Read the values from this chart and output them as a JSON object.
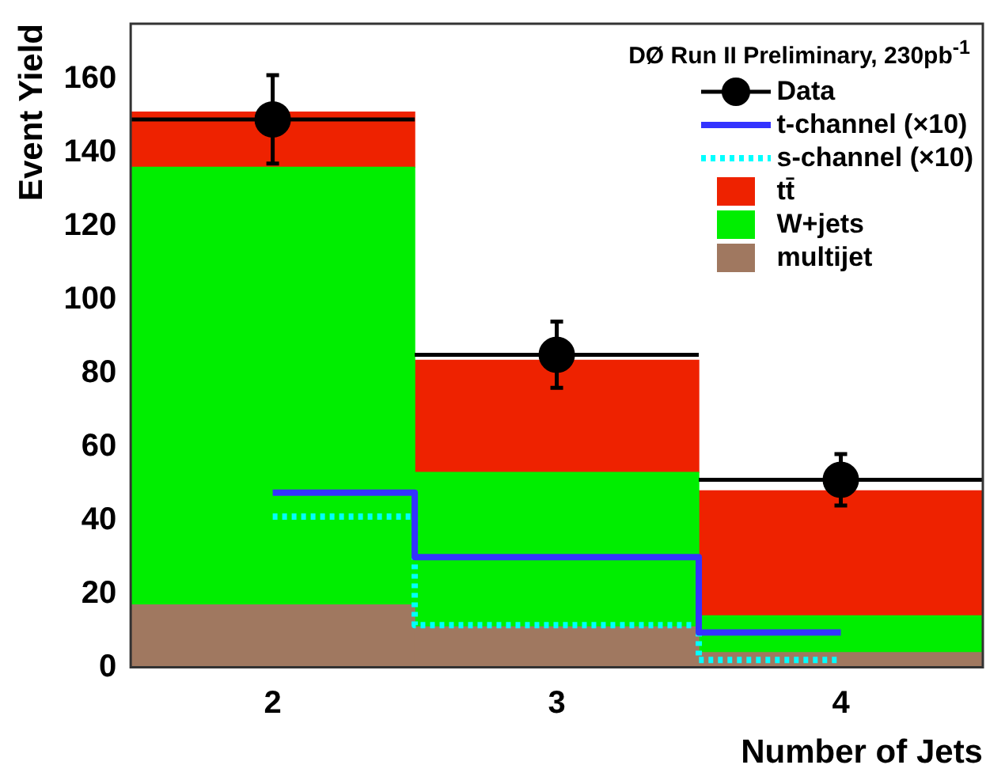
{
  "chart_data": {
    "type": "bar",
    "title": "DØ Run II Preliminary, 230pb$^{-1}$",
    "xlabel": "Number of Jets",
    "ylabel": "Event Yield",
    "x": [
      2,
      3,
      4
    ],
    "xlim": [
      1.5,
      4.5
    ],
    "xticks": [
      2,
      3,
      4
    ],
    "ylim": [
      0,
      175
    ],
    "yticks": [
      0,
      20,
      40,
      60,
      80,
      100,
      120,
      140,
      160
    ],
    "stacked": true,
    "legend": "top right",
    "grid": false,
    "series": [
      {
        "name": "Data",
        "type": "scatter",
        "color": "#000000",
        "values": [
          149,
          85,
          51
        ],
        "errors": [
          12,
          9,
          7
        ],
        "xerrors": [
          0.5,
          0.5,
          0.5
        ],
        "marker": "circle"
      },
      {
        "name": "t-channel (×10)",
        "type": "step",
        "color": "#3333ff",
        "values": [
          47.5,
          30,
          9.5
        ],
        "line_style": "solid"
      },
      {
        "name": "s-channel (×10)",
        "type": "step",
        "color": "#00ffff",
        "values": [
          41,
          11.5,
          2
        ],
        "line_style": "dotted"
      },
      {
        "name": "multijet",
        "color": "#a07860",
        "values": [
          17,
          11,
          4
        ]
      },
      {
        "name": "W+jets",
        "color": "#00ee00",
        "values": [
          119,
          42,
          10
        ]
      },
      {
        "name": "tt̄",
        "color": "#ee2200",
        "values": [
          15,
          30.5,
          34
        ]
      }
    ]
  }
}
